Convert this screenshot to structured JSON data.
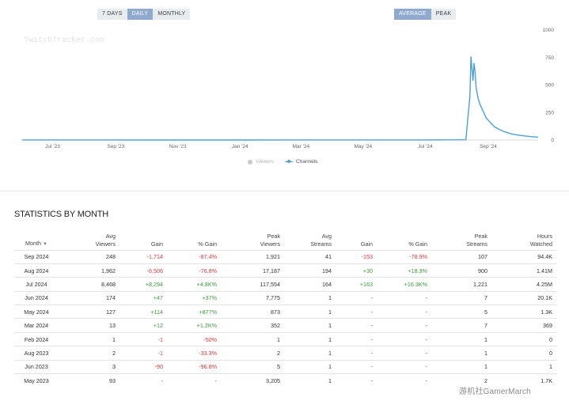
{
  "range_buttons": [
    {
      "label": "7 DAYS",
      "active": false
    },
    {
      "label": "DAILY",
      "active": true
    },
    {
      "label": "MONTHLY",
      "active": false
    }
  ],
  "metric_buttons": [
    {
      "label": "AVERAGE",
      "active": true
    },
    {
      "label": "PEAK",
      "active": false
    }
  ],
  "watermark": "TwitchTracker.com",
  "legend": {
    "viewers": "Viewers",
    "channels": "Channels"
  },
  "colors": {
    "line": "#4aa0d5",
    "active_button": "#8fa9cf",
    "positive": "#3f9b3f",
    "negative": "#d63b3b"
  },
  "chart_data": {
    "type": "line",
    "x_ticks": [
      "Jul '23",
      "Sep '23",
      "Nov '23",
      "Jan '24",
      "Mar '24",
      "May '24",
      "Jul '24",
      "Sep '24"
    ],
    "y_ticks": [
      0,
      250,
      500,
      750,
      1000
    ],
    "ylim": [
      0,
      1000
    ],
    "x_range": [
      "2023-06-01",
      "2024-10-20"
    ],
    "series": [
      {
        "name": "Channels",
        "points": [
          [
            "2023-06-01",
            1
          ],
          [
            "2023-08-01",
            1
          ],
          [
            "2023-10-01",
            0
          ],
          [
            "2024-01-01",
            0
          ],
          [
            "2024-03-01",
            1
          ],
          [
            "2024-05-01",
            1
          ],
          [
            "2024-07-01",
            1
          ],
          [
            "2024-08-10",
            2
          ],
          [
            "2024-08-14",
            400
          ],
          [
            "2024-08-15",
            760
          ],
          [
            "2024-08-16",
            650
          ],
          [
            "2024-08-17",
            540
          ],
          [
            "2024-08-18",
            700
          ],
          [
            "2024-08-19",
            620
          ],
          [
            "2024-08-20",
            480
          ],
          [
            "2024-08-22",
            380
          ],
          [
            "2024-08-24",
            320
          ],
          [
            "2024-08-27",
            260
          ],
          [
            "2024-08-30",
            200
          ],
          [
            "2024-09-03",
            160
          ],
          [
            "2024-09-07",
            120
          ],
          [
            "2024-09-12",
            95
          ],
          [
            "2024-09-17",
            75
          ],
          [
            "2024-09-22",
            60
          ],
          [
            "2024-09-27",
            50
          ],
          [
            "2024-10-02",
            42
          ],
          [
            "2024-10-08",
            35
          ],
          [
            "2024-10-14",
            30
          ],
          [
            "2024-10-20",
            25
          ]
        ]
      }
    ]
  },
  "stats": {
    "title": "STATISTICS BY MONTH",
    "sort_arrow": "▼",
    "columns": {
      "month": "Month",
      "avg_viewers": [
        "Avg",
        "Viewers"
      ],
      "gain": "Gain",
      "pct_gain": "% Gain",
      "peak_viewers": [
        "Peak",
        "Viewers"
      ],
      "avg_streams": [
        "Avg",
        "Streams"
      ],
      "gain2": "Gain",
      "pct_gain2": "% Gain",
      "peak_streams": [
        "Peak",
        "Streams"
      ],
      "hours_watched": [
        "Hours",
        "Watched"
      ]
    },
    "rows": [
      [
        "Sep 2024",
        "248",
        "-1,714",
        "-87.4%",
        "1,921",
        "41",
        "-153",
        "-78.9%",
        "107",
        "94.4K"
      ],
      [
        "Aug 2024",
        "1,962",
        "-6,506",
        "-76.8%",
        "17,187",
        "194",
        "+30",
        "+18.3%",
        "900",
        "1.41M"
      ],
      [
        "Jul 2024",
        "8,468",
        "+8,294",
        "+4.8K%",
        "117,554",
        "164",
        "+163",
        "+16.3K%",
        "1,221",
        "4.25M"
      ],
      [
        "Jun 2024",
        "174",
        "+47",
        "+37%",
        "7,775",
        "1",
        "-",
        "-",
        "7",
        "20.1K"
      ],
      [
        "May 2024",
        "127",
        "+114",
        "+877%",
        "873",
        "1",
        "-",
        "-",
        "5",
        "1.3K"
      ],
      [
        "Mar 2024",
        "13",
        "+12",
        "+1.2K%",
        "352",
        "1",
        "-",
        "-",
        "7",
        "369"
      ],
      [
        "Feb 2024",
        "1",
        "-1",
        "-50%",
        "1",
        "1",
        "-",
        "-",
        "1",
        "0"
      ],
      [
        "Aug 2023",
        "2",
        "-1",
        "-33.3%",
        "2",
        "1",
        "-",
        "-",
        "1",
        "0"
      ],
      [
        "Jun 2023",
        "3",
        "-90",
        "-96.8%",
        "5",
        "1",
        "-",
        "-",
        "1",
        "1"
      ],
      [
        "May 2023",
        "93",
        "-",
        "-",
        "3,205",
        "1",
        "-",
        "-",
        "2",
        "1.7K"
      ]
    ]
  },
  "corner_mark": "游机社GamerMarch"
}
